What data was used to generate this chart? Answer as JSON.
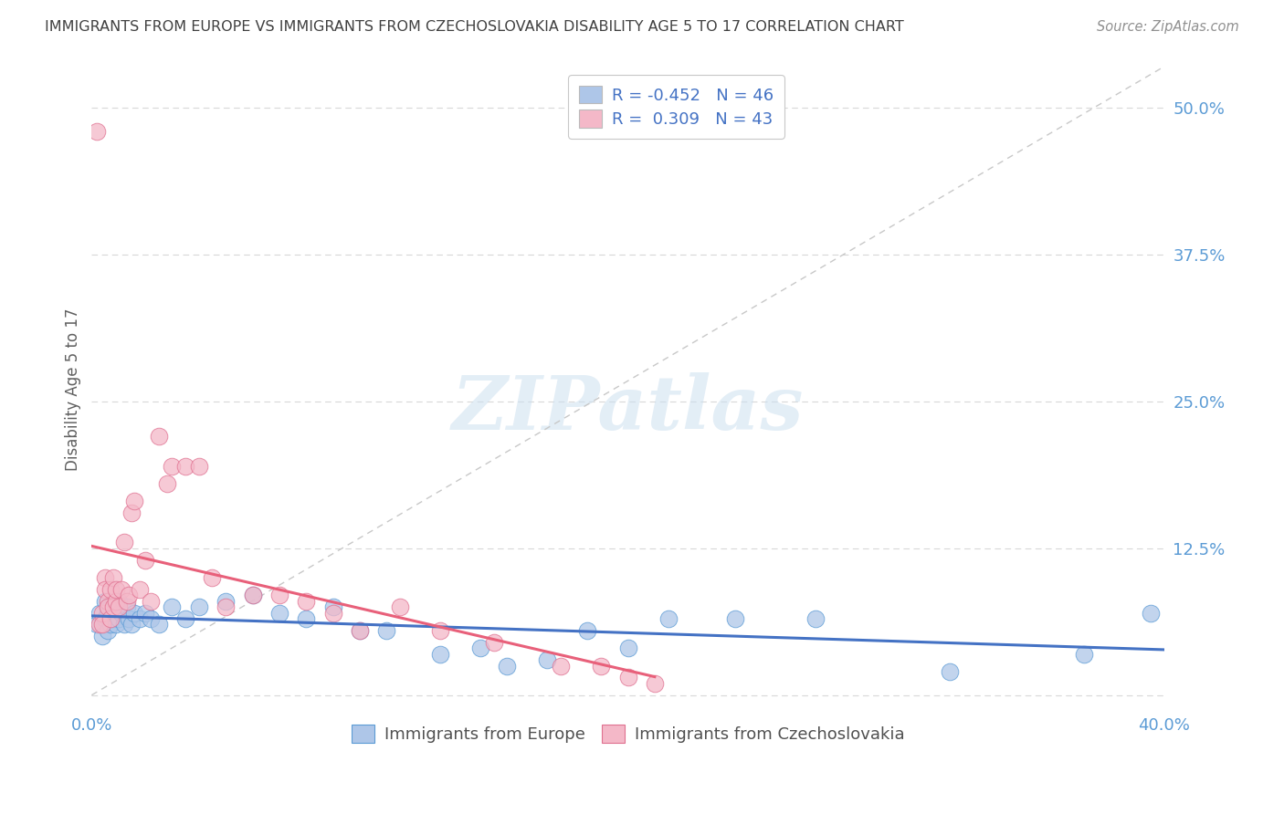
{
  "title": "IMMIGRANTS FROM EUROPE VS IMMIGRANTS FROM CZECHOSLOVAKIA DISABILITY AGE 5 TO 17 CORRELATION CHART",
  "source": "Source: ZipAtlas.com",
  "ylabel": "Disability Age 5 to 17",
  "ytick_labels": [
    "",
    "12.5%",
    "25.0%",
    "37.5%",
    "50.0%"
  ],
  "ytick_values": [
    0.0,
    0.125,
    0.25,
    0.375,
    0.5
  ],
  "xlim": [
    0.0,
    0.4
  ],
  "ylim": [
    -0.015,
    0.535
  ],
  "legend_entries": [
    {
      "color": "#aec6e8",
      "edge": "#5b9bd5",
      "text_r": "R = -0.452",
      "text_n": "N = 46"
    },
    {
      "color": "#f4b8c8",
      "edge": "#e07090",
      "text_r": "R =  0.309",
      "text_n": "N = 43"
    }
  ],
  "watermark": "ZIPatlas",
  "scatter_blue": {
    "x": [
      0.002,
      0.003,
      0.004,
      0.005,
      0.005,
      0.006,
      0.006,
      0.007,
      0.007,
      0.008,
      0.008,
      0.009,
      0.01,
      0.01,
      0.011,
      0.012,
      0.013,
      0.014,
      0.015,
      0.016,
      0.018,
      0.02,
      0.022,
      0.025,
      0.03,
      0.035,
      0.04,
      0.05,
      0.06,
      0.07,
      0.08,
      0.09,
      0.1,
      0.11,
      0.13,
      0.145,
      0.155,
      0.17,
      0.185,
      0.2,
      0.215,
      0.24,
      0.27,
      0.32,
      0.37,
      0.395
    ],
    "y": [
      0.06,
      0.07,
      0.05,
      0.08,
      0.065,
      0.07,
      0.055,
      0.075,
      0.06,
      0.065,
      0.075,
      0.06,
      0.065,
      0.08,
      0.07,
      0.06,
      0.075,
      0.065,
      0.06,
      0.07,
      0.065,
      0.07,
      0.065,
      0.06,
      0.075,
      0.065,
      0.075,
      0.08,
      0.085,
      0.07,
      0.065,
      0.075,
      0.055,
      0.055,
      0.035,
      0.04,
      0.025,
      0.03,
      0.055,
      0.04,
      0.065,
      0.065,
      0.065,
      0.02,
      0.035,
      0.07
    ],
    "color": "#aec6e8",
    "edge_color": "#5b9bd5",
    "size": 180,
    "alpha": 0.75
  },
  "scatter_pink": {
    "x": [
      0.002,
      0.003,
      0.004,
      0.004,
      0.005,
      0.005,
      0.006,
      0.006,
      0.007,
      0.007,
      0.008,
      0.008,
      0.009,
      0.009,
      0.01,
      0.011,
      0.012,
      0.013,
      0.014,
      0.015,
      0.016,
      0.018,
      0.02,
      0.022,
      0.025,
      0.028,
      0.03,
      0.035,
      0.04,
      0.045,
      0.05,
      0.06,
      0.07,
      0.08,
      0.09,
      0.1,
      0.115,
      0.13,
      0.15,
      0.175,
      0.19,
      0.2,
      0.21
    ],
    "y": [
      0.48,
      0.06,
      0.07,
      0.06,
      0.1,
      0.09,
      0.08,
      0.075,
      0.09,
      0.065,
      0.075,
      0.1,
      0.08,
      0.09,
      0.075,
      0.09,
      0.13,
      0.08,
      0.085,
      0.155,
      0.165,
      0.09,
      0.115,
      0.08,
      0.22,
      0.18,
      0.195,
      0.195,
      0.195,
      0.1,
      0.075,
      0.085,
      0.085,
      0.08,
      0.07,
      0.055,
      0.075,
      0.055,
      0.045,
      0.025,
      0.025,
      0.015,
      0.01
    ],
    "color": "#f4b8c8",
    "edge_color": "#e07090",
    "size": 180,
    "alpha": 0.75
  },
  "trend_blue_color": "#4472c4",
  "trend_pink_color": "#e8607a",
  "trend_linewidth": 2.2,
  "diagonal_color": "#c8c8c8",
  "diagonal_style": "--",
  "grid_color": "#d8d8d8",
  "grid_style": "--",
  "title_color": "#404040",
  "axis_color": "#5b9bd5",
  "legend_border_color": "#c8c8c8",
  "bottom_label_blue": "Immigrants from Europe",
  "bottom_label_pink": "Immigrants from Czechoslovakia"
}
